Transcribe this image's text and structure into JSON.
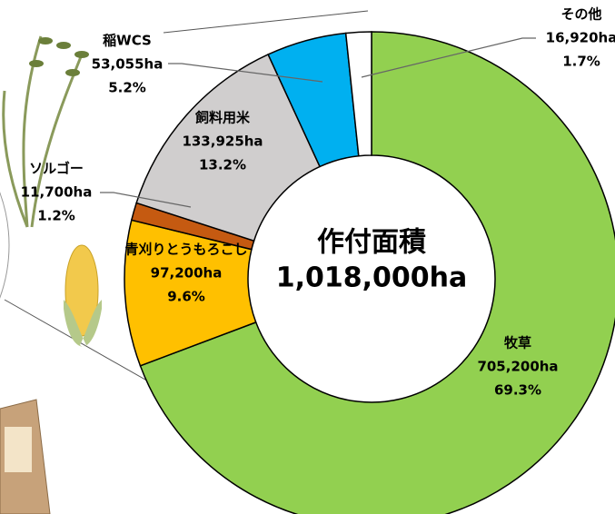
{
  "chart_data": {
    "type": "donut",
    "center_title": "作付面積",
    "center_total": "1,018,000ha",
    "categories": [
      "牧草",
      "青刈りとうもろこし",
      "ソルゴー",
      "飼料用米",
      "稲WCS",
      "その他"
    ],
    "values": [
      705200,
      97200,
      11700,
      133925,
      53055,
      16920
    ],
    "value_labels": [
      "705,200ha",
      "97,200ha",
      "11,700ha",
      "133,925ha",
      "53,055ha",
      "16,920ha"
    ],
    "percents": [
      69.3,
      9.6,
      1.2,
      13.2,
      5.2,
      1.7
    ],
    "percent_labels": [
      "69.3%",
      "9.6%",
      "1.2%",
      "13.2%",
      "5.2%",
      "1.7%"
    ],
    "colors": [
      "#92d050",
      "#ffc000",
      "#c55a11",
      "#d0cece",
      "#00b0f0",
      "#ffffff"
    ]
  }
}
